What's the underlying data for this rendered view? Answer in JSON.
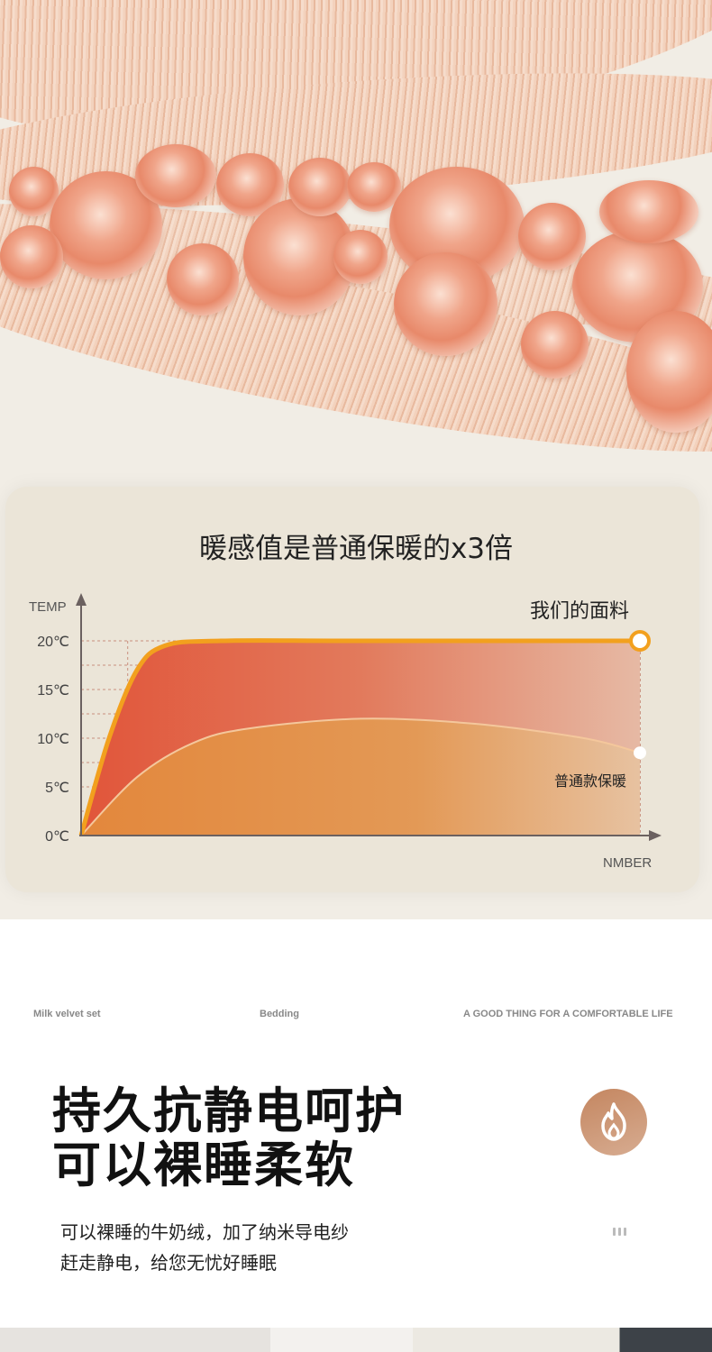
{
  "chart_title": "暖感值是普通保暖的x3倍",
  "chart_data": {
    "type": "area",
    "title": "暖感值是普通保暖的x3倍",
    "ylabel": "TEMP",
    "xlabel": "NMBER",
    "y_ticks": [
      "0℃",
      "5℃",
      "10℃",
      "15℃",
      "20℃"
    ],
    "ylim": [
      0,
      20
    ],
    "xlim": [
      0,
      10
    ],
    "grid": true,
    "series": [
      {
        "name": "我们的面料",
        "color": "#f2a01e",
        "fill": "#e25a3c",
        "points": [
          [
            0,
            0
          ],
          [
            0.5,
            10
          ],
          [
            1,
            17
          ],
          [
            1.5,
            19.5
          ],
          [
            2.5,
            20
          ],
          [
            5,
            20
          ],
          [
            10,
            20
          ]
        ]
      },
      {
        "name": "普通款保暖",
        "color": "#f4c79c",
        "fill": "#e38f3e",
        "points": [
          [
            0,
            0
          ],
          [
            1,
            6
          ],
          [
            2,
            9.5
          ],
          [
            3,
            11
          ],
          [
            5,
            12
          ],
          [
            7,
            11.5
          ],
          [
            9,
            10
          ],
          [
            10,
            8.5
          ]
        ]
      }
    ]
  },
  "labels": {
    "left": "Milk velvet set",
    "center": "Bedding",
    "right": "A GOOD THING FOR A COMFORTABLE LIFE"
  },
  "headline": [
    "持久抗静电呵护",
    "可以裸睡柔软"
  ],
  "body": [
    "可以裸睡的牛奶绒，加了纳米导电纱",
    "赶走静电，给您无忧好睡眠"
  ],
  "icon": "fire-icon"
}
